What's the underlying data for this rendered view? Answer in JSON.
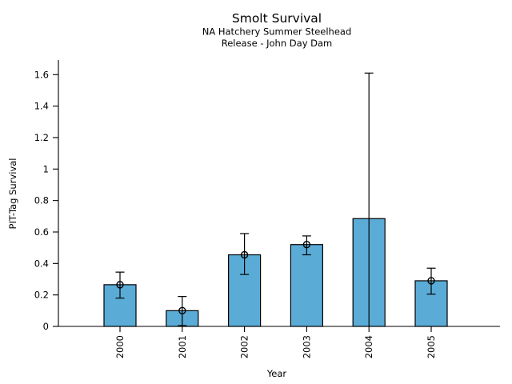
{
  "chart_data": {
    "type": "bar",
    "title": "Smolt Survival",
    "subtitle": [
      "NA Hatchery Summer Steelhead",
      "Release - John Day Dam"
    ],
    "xlabel": "Year",
    "ylabel": "PIT-Tag Survival",
    "categories": [
      "2000",
      "2001",
      "2002",
      "2003",
      "2004",
      "2005"
    ],
    "values": [
      0.265,
      0.1,
      0.455,
      0.52,
      0.685,
      0.29
    ],
    "error_low": [
      0.18,
      0.005,
      0.33,
      0.455,
      0,
      0.205
    ],
    "error_high": [
      0.345,
      0.19,
      0.59,
      0.575,
      1.61,
      0.37
    ],
    "point_marker": [
      true,
      true,
      true,
      true,
      false,
      true
    ],
    "error_cap_bottom": [
      true,
      true,
      true,
      true,
      false,
      true
    ],
    "yticks": [
      0,
      0.2,
      0.4,
      0.6,
      0.8,
      1,
      1.2,
      1.4,
      1.6
    ],
    "ytick_labels": [
      "0",
      "0.2",
      "0.4",
      "0.6",
      "0.8",
      "1",
      "1.2",
      "1.4",
      "1.6"
    ],
    "ylim": [
      0,
      1.69
    ],
    "grid": false,
    "legend": "none",
    "bar_color": "#5AACD7",
    "bar_edge_color": "#000000",
    "error_color": "#000000",
    "marker_color": "#000000",
    "axis_color": "#000000",
    "background_color": "#FFFFFF"
  }
}
